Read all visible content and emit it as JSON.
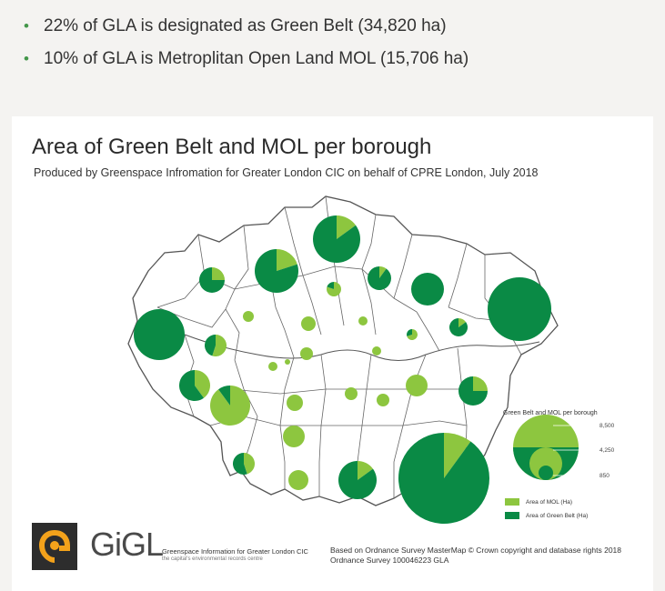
{
  "bullets": [
    "22% of GLA is designated as Green Belt (34,820 ha)",
    "10% of GLA is Metroplitan Open Land MOL (15,706 ha)"
  ],
  "bullet_glyph": "•",
  "map": {
    "title": "Area of Green Belt and MOL per borough",
    "subtitle": "Produced by Greenspace Infromation for Greater London CIC on behalf of CPRE London, July 2018",
    "legend": {
      "title": "Green Belt and MOL per borough",
      "scale_values": [
        "8,500",
        "4,250",
        "850"
      ],
      "mol_label": "Area of MOL (Ha)",
      "green_belt_label": "Area of Green Belt (Ha)"
    },
    "colors": {
      "mol": "#8dc63f",
      "green_belt": "#0a8a45",
      "boundary": "#555555",
      "land": "#ffffff"
    }
  },
  "footer": {
    "logo_text": "GiGL",
    "org_name": "Greenspace Information for Greater London CIC",
    "org_tagline": "the capital's environmental records centre",
    "credit_line1": "Based on Ordnance Survey MasterMap © Crown copyright and database rights 2018",
    "credit_line2": "Ordnance Survey 100046223 GLA"
  }
}
